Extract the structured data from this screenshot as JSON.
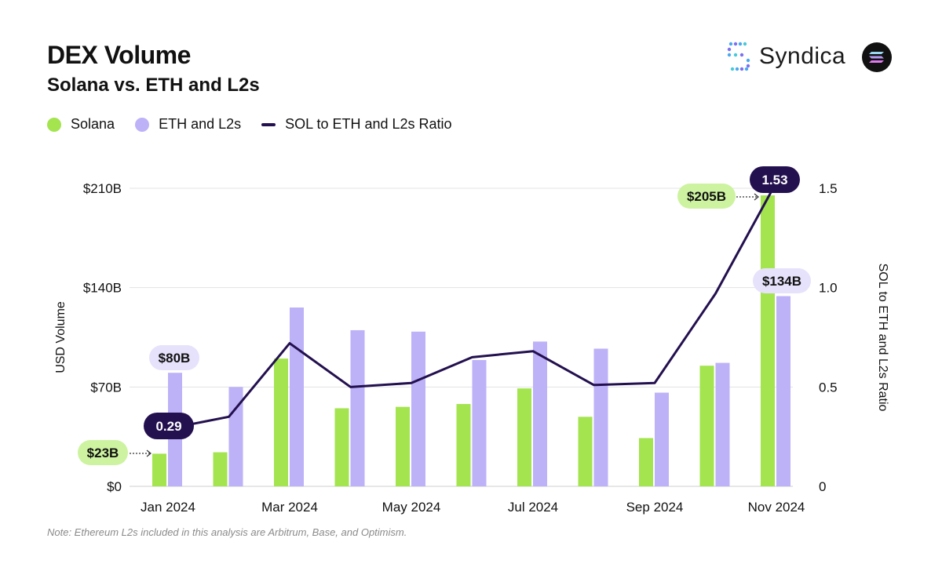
{
  "header": {
    "title": "DEX Volume",
    "subtitle": "Solana vs. ETH and L2s",
    "brand_name": "Syndica"
  },
  "note": "Note: Ethereum L2s included in this analysis are Arbitrum, Base, and Optimism.",
  "colors": {
    "solana": "#a3e44f",
    "eth_l2s": "#bdb2f7",
    "ratio": "#23104f",
    "solana_label_bg": "#cdf3a0",
    "eth_label_bg": "#e7e2fb",
    "grid": "#e3e3e3"
  },
  "chart_data": {
    "type": "bar",
    "title": "DEX Volume",
    "subtitle": "Solana vs. ETH and L2s",
    "x": [
      "Jan 2024",
      "Feb 2024",
      "Mar 2024",
      "Apr 2024",
      "May 2024",
      "Jun 2024",
      "Jul 2024",
      "Aug 2024",
      "Sep 2024",
      "Oct 2024",
      "Nov 2024"
    ],
    "x_tick_labels": [
      "Jan 2024",
      "",
      "Mar 2024",
      "",
      "May 2024",
      "",
      "Jul 2024",
      "",
      "Sep 2024",
      "",
      "Nov 2024"
    ],
    "series": [
      {
        "name": "Solana",
        "type": "bar",
        "axis": "left",
        "values": [
          23,
          24,
          90,
          55,
          56,
          58,
          69,
          49,
          34,
          85,
          205
        ]
      },
      {
        "name": "ETH and L2s",
        "type": "bar",
        "axis": "left",
        "values": [
          80,
          70,
          126,
          110,
          109,
          89,
          102,
          97,
          66,
          87,
          134
        ]
      },
      {
        "name": "SOL to ETH and L2s Ratio",
        "type": "line",
        "axis": "right",
        "values": [
          0.29,
          0.35,
          0.72,
          0.5,
          0.52,
          0.65,
          0.68,
          0.51,
          0.52,
          0.97,
          1.53
        ]
      }
    ],
    "y_left": {
      "label": "USD Volume",
      "ylim": [
        0,
        210
      ],
      "ticks": [
        0,
        70,
        140,
        210
      ],
      "tick_labels": [
        "$0",
        "$70B",
        "$140B",
        "$210B"
      ]
    },
    "y_right": {
      "label": "SOL to ETH and L2s Ratio",
      "ylim": [
        0,
        1.5
      ],
      "ticks": [
        0,
        0.5,
        1.0,
        1.5
      ],
      "tick_labels": [
        "0",
        "0.5",
        "1.0",
        "1.5"
      ]
    },
    "annotations": [
      {
        "series": "Solana",
        "index": 0,
        "text": "$23B"
      },
      {
        "series": "ETH and L2s",
        "index": 0,
        "text": "$80B"
      },
      {
        "series": "SOL to ETH and L2s Ratio",
        "index": 0,
        "text": "0.29"
      },
      {
        "series": "Solana",
        "index": 10,
        "text": "$205B"
      },
      {
        "series": "ETH and L2s",
        "index": 10,
        "text": "$134B"
      },
      {
        "series": "SOL to ETH and L2s Ratio",
        "index": 10,
        "text": "1.53"
      }
    ],
    "grid": true,
    "legend": "top-left"
  }
}
